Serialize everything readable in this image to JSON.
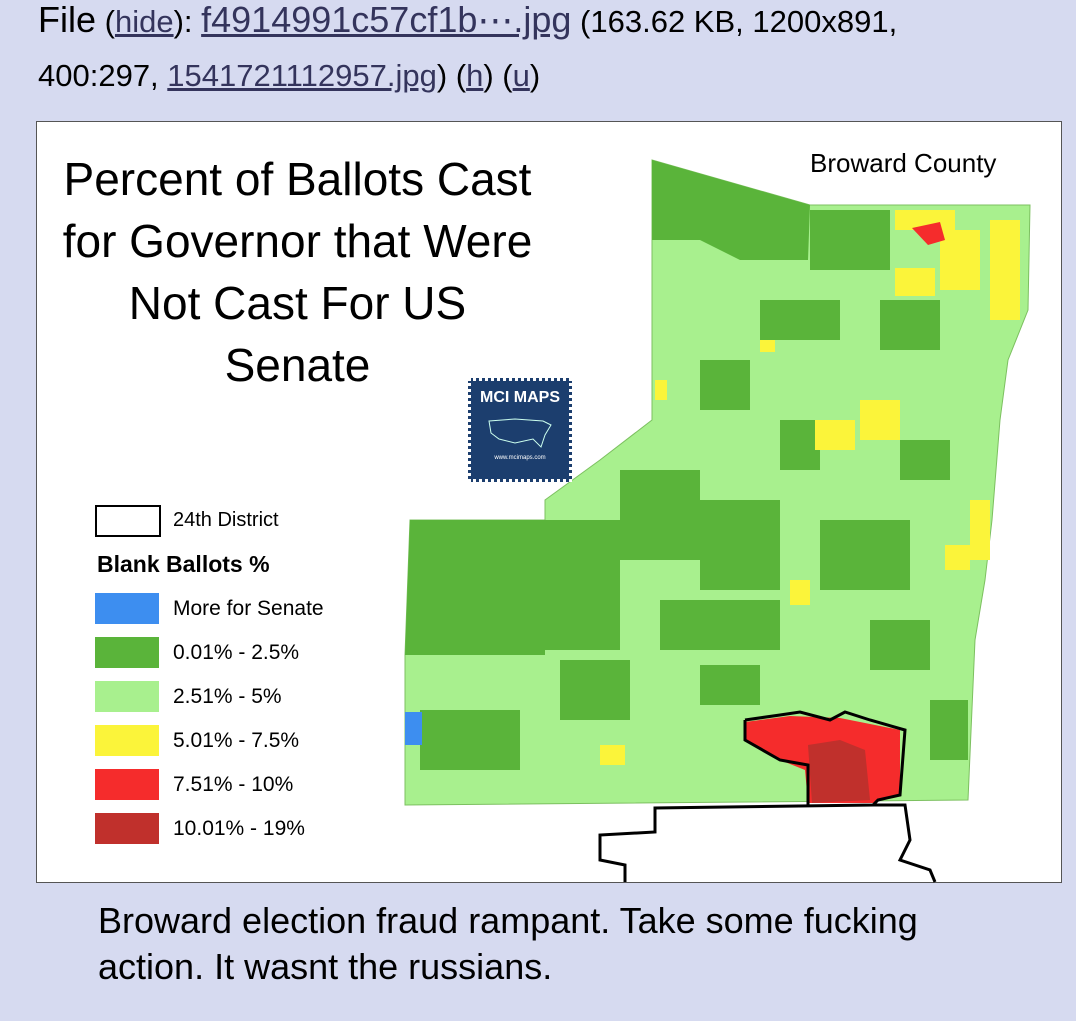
{
  "file_info": {
    "label": "File",
    "hide_link": "hide",
    "filename": "f4914991c57cf1b⋯.jpg",
    "details_1": "(163.62 KB, 1200x891,",
    "details_2": "400:297,",
    "original_name": "1541721112957.jpg",
    "h_link": "h",
    "u_link": "u"
  },
  "map": {
    "title": "Percent of Ballots Cast for Governor that Were Not Cast For US Senate",
    "county_label": "Broward County",
    "logo_text": "MCI MAPS",
    "logo_url": "www.mcimaps.com",
    "legend": {
      "district_label": "24th District",
      "heading": "Blank Ballots %",
      "items": [
        {
          "label": "More for Senate",
          "color": "#3d8ef0"
        },
        {
          "label": "0.01% - 2.5%",
          "color": "#5ab43a"
        },
        {
          "label": "2.51% - 5%",
          "color": "#a8f08e"
        },
        {
          "label": "5.01% - 7.5%",
          "color": "#fbf43a"
        },
        {
          "label": "7.51% - 10%",
          "color": "#f52c2c"
        },
        {
          "label": "10.01% - 19%",
          "color": "#c0302c"
        }
      ]
    }
  },
  "post": {
    "comment": "Broward election fraud rampant. Take some fucking action. It wasnt the russians."
  }
}
